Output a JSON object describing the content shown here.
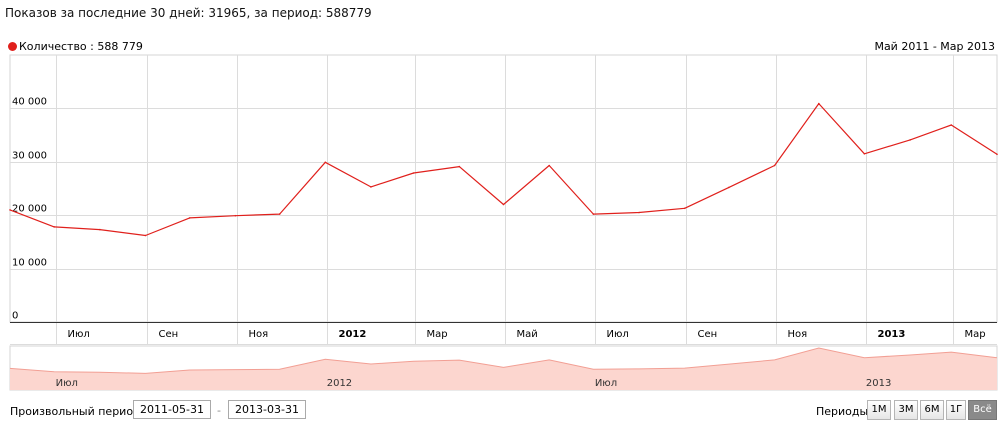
{
  "header": {
    "title": "Показов за последние 30 дней: 31965, за период: 588779"
  },
  "legend": {
    "label": "Количество : 588 779",
    "color": "#e0201c"
  },
  "period_label": "Май 2011 - Мар 2013",
  "bottom": {
    "custom_period_label": "Произвольный период:",
    "date_from": "2011-05-31",
    "date_to": "2013-03-31",
    "dash": "-",
    "periods_label": "Периоды:",
    "period_buttons": [
      "1М",
      "3М",
      "6М",
      "1Г",
      "Всё"
    ],
    "active_period": "Всё"
  },
  "chart_data": {
    "type": "line",
    "series": [
      {
        "name": "Количество",
        "color": "#e0201c",
        "x": [
          "2011-05-31",
          "2011-06-30",
          "2011-07-31",
          "2011-08-31",
          "2011-09-30",
          "2011-10-31",
          "2011-11-30",
          "2011-12-31",
          "2012-01-31",
          "2012-02-29",
          "2012-03-31",
          "2012-04-30",
          "2012-05-31",
          "2012-06-30",
          "2012-07-31",
          "2012-08-31",
          "2012-09-30",
          "2012-10-31",
          "2012-11-30",
          "2012-12-31",
          "2013-01-31",
          "2013-02-28",
          "2013-03-31"
        ],
        "values": [
          21000,
          17800,
          17300,
          16200,
          19500,
          19900,
          20200,
          29900,
          25300,
          27900,
          29100,
          22000,
          29300,
          20200,
          20500,
          21300,
          25200,
          29300,
          40900,
          31500,
          34100,
          36900,
          31400
        ]
      }
    ],
    "yticks": [
      0,
      10000,
      20000,
      30000,
      40000
    ],
    "ytick_labels": [
      "0",
      "10 000",
      "20 000",
      "30 000",
      "40 000"
    ],
    "ylim": [
      0,
      50000
    ],
    "xticks": [
      {
        "date": "2011-07-01",
        "label": "Июл",
        "bold": false
      },
      {
        "date": "2011-09-01",
        "label": "Сен",
        "bold": false
      },
      {
        "date": "2011-11-01",
        "label": "Ноя",
        "bold": false
      },
      {
        "date": "2012-01-01",
        "label": "2012",
        "bold": true
      },
      {
        "date": "2012-03-01",
        "label": "Мар",
        "bold": false
      },
      {
        "date": "2012-05-01",
        "label": "Май",
        "bold": false
      },
      {
        "date": "2012-07-01",
        "label": "Июл",
        "bold": false
      },
      {
        "date": "2012-09-01",
        "label": "Сен",
        "bold": false
      },
      {
        "date": "2012-11-01",
        "label": "Ноя",
        "bold": false
      },
      {
        "date": "2013-01-01",
        "label": "2013",
        "bold": true
      },
      {
        "date": "2013-03-01",
        "label": "Мар",
        "bold": false
      }
    ],
    "navigator_labels": [
      {
        "date": "2011-07-01",
        "label": "Июл"
      },
      {
        "date": "2012-01-01",
        "label": "2012"
      },
      {
        "date": "2012-07-01",
        "label": "Июл"
      },
      {
        "date": "2013-01-01",
        "label": "2013"
      }
    ],
    "xlim": [
      "2011-05-31",
      "2013-03-31"
    ],
    "grid": true,
    "legend_position": "top-left",
    "navigator_fill": "#fcd6cf",
    "navigator_line": "#f29f94"
  }
}
